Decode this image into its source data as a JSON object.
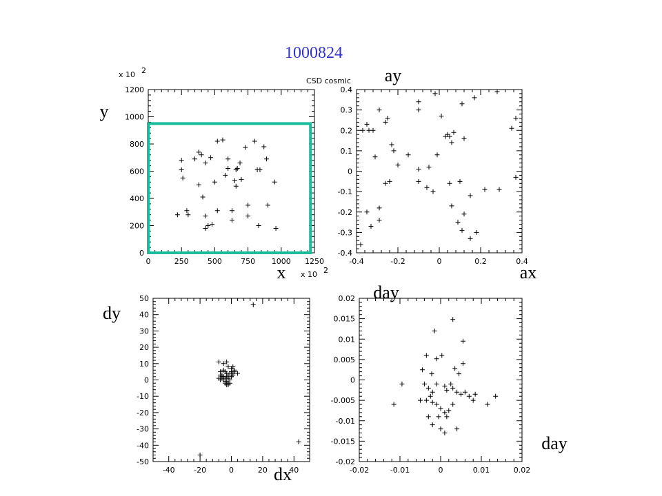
{
  "title": "1000824",
  "selection_color": "#1abc9c",
  "chart_data": [
    {
      "type": "scatter",
      "id": "xy",
      "xlabel": "x",
      "ylabel": "y",
      "xlim": [
        0,
        1250
      ],
      "ylim": [
        0,
        1200
      ],
      "x_exponent": "x 10",
      "y_exponent": "x 10",
      "exp_sup": "2",
      "xticks": [
        0,
        250,
        500,
        750,
        1000,
        1250
      ],
      "yticks": [
        0,
        200,
        400,
        600,
        800,
        1000,
        1200
      ],
      "selection_box": {
        "x0": 0,
        "x1": 1220,
        "y0": 0,
        "y1": 950
      },
      "points": [
        [
          520,
          820
        ],
        [
          560,
          830
        ],
        [
          800,
          820
        ],
        [
          730,
          775
        ],
        [
          870,
          780
        ],
        [
          380,
          740
        ],
        [
          400,
          720
        ],
        [
          350,
          690
        ],
        [
          470,
          700
        ],
        [
          250,
          680
        ],
        [
          600,
          690
        ],
        [
          250,
          610
        ],
        [
          430,
          660
        ],
        [
          690,
          660
        ],
        [
          600,
          620
        ],
        [
          670,
          620
        ],
        [
          660,
          610
        ],
        [
          820,
          610
        ],
        [
          840,
          610
        ],
        [
          260,
          550
        ],
        [
          580,
          570
        ],
        [
          700,
          540
        ],
        [
          890,
          690
        ],
        [
          500,
          520
        ],
        [
          380,
          500
        ],
        [
          650,
          530
        ],
        [
          660,
          490
        ],
        [
          950,
          520
        ],
        [
          410,
          410
        ],
        [
          520,
          310
        ],
        [
          630,
          310
        ],
        [
          750,
          350
        ],
        [
          900,
          350
        ],
        [
          290,
          310
        ],
        [
          220,
          280
        ],
        [
          300,
          280
        ],
        [
          430,
          270
        ],
        [
          630,
          240
        ],
        [
          750,
          270
        ],
        [
          450,
          200
        ],
        [
          480,
          210
        ],
        [
          830,
          200
        ],
        [
          960,
          180
        ],
        [
          430,
          180
        ]
      ]
    },
    {
      "type": "scatter",
      "id": "axay",
      "corner_label": "CSD cosmic",
      "xlabel": "ax",
      "ylabel": "ay",
      "xlim": [
        -0.4,
        0.4
      ],
      "ylim": [
        -0.4,
        0.4
      ],
      "xticks": [
        "-0.4",
        "-0.2",
        "0",
        "0.2",
        "0.4"
      ],
      "yticks": [
        "-0.4",
        "-0.3",
        "-0.2",
        "-0.1",
        "0",
        "0.1",
        "0.2",
        "0.3",
        "0.4"
      ],
      "points": [
        [
          -0.37,
          0.2
        ],
        [
          -0.35,
          0.23
        ],
        [
          -0.34,
          0.2
        ],
        [
          -0.32,
          0.2
        ],
        [
          -0.29,
          0.3
        ],
        [
          -0.26,
          0.24
        ],
        [
          -0.25,
          0.26
        ],
        [
          -0.23,
          0.13
        ],
        [
          -0.22,
          0.1
        ],
        [
          -0.1,
          0.3
        ],
        [
          -0.1,
          0.34
        ],
        [
          -0.02,
          0.38
        ],
        [
          0.01,
          0.27
        ],
        [
          0.03,
          0.17
        ],
        [
          0.04,
          0.18
        ],
        [
          0.05,
          0.17
        ],
        [
          0.06,
          0.14
        ],
        [
          0.07,
          0.19
        ],
        [
          0.11,
          0.33
        ],
        [
          0.12,
          0.16
        ],
        [
          0.17,
          0.36
        ],
        [
          0.28,
          0.39
        ],
        [
          0.35,
          0.21
        ],
        [
          0.37,
          0.26
        ],
        [
          -0.31,
          0.07
        ],
        [
          -0.2,
          0.03
        ],
        [
          -0.15,
          0.08
        ],
        [
          -0.1,
          0.01
        ],
        [
          -0.05,
          0.02
        ],
        [
          -0.01,
          0.08
        ],
        [
          0.05,
          -0.06
        ],
        [
          0.1,
          -0.05
        ],
        [
          0.15,
          -0.12
        ],
        [
          0.22,
          -0.09
        ],
        [
          0.29,
          -0.09
        ],
        [
          0.37,
          -0.03
        ],
        [
          -0.35,
          -0.2
        ],
        [
          -0.33,
          -0.27
        ],
        [
          -0.29,
          -0.18
        ],
        [
          -0.29,
          -0.24
        ],
        [
          -0.26,
          -0.06
        ],
        [
          -0.24,
          -0.05
        ],
        [
          -0.1,
          -0.05
        ],
        [
          -0.06,
          -0.08
        ],
        [
          -0.03,
          -0.1
        ],
        [
          0.06,
          -0.17
        ],
        [
          0.09,
          -0.25
        ],
        [
          0.11,
          -0.29
        ],
        [
          0.15,
          -0.33
        ],
        [
          0.18,
          -0.3
        ],
        [
          -0.38,
          -0.36
        ],
        [
          0.12,
          -0.21
        ]
      ]
    },
    {
      "type": "scatter",
      "id": "dxdy",
      "xlabel": "dx",
      "ylabel": "dy",
      "xlim": [
        -50,
        50
      ],
      "ylim": [
        -50,
        50
      ],
      "xticks": [
        -40,
        -20,
        0,
        20,
        40
      ],
      "yticks": [
        -50,
        -40,
        -30,
        -20,
        -10,
        0,
        10,
        20,
        30,
        40,
        50
      ],
      "points": [
        [
          14,
          46
        ],
        [
          -8,
          11
        ],
        [
          -5,
          10
        ],
        [
          -3,
          11
        ],
        [
          -2,
          8
        ],
        [
          0,
          7
        ],
        [
          1,
          8
        ],
        [
          2,
          6
        ],
        [
          -7,
          5
        ],
        [
          -5,
          6
        ],
        [
          -4,
          5
        ],
        [
          -3,
          4
        ],
        [
          -2,
          3
        ],
        [
          -1,
          4
        ],
        [
          0,
          5
        ],
        [
          1,
          4
        ],
        [
          2,
          5
        ],
        [
          -6,
          3
        ],
        [
          -5,
          2
        ],
        [
          -4,
          1
        ],
        [
          -3,
          2
        ],
        [
          -2,
          1
        ],
        [
          -1,
          0
        ],
        [
          0,
          2
        ],
        [
          1,
          3
        ],
        [
          4,
          4
        ],
        [
          -8,
          1
        ],
        [
          -7,
          0
        ],
        [
          -6,
          2
        ],
        [
          -5,
          0
        ],
        [
          -4,
          -1
        ],
        [
          -3,
          -1
        ],
        [
          -2,
          -2
        ],
        [
          -3,
          -3
        ],
        [
          -4,
          -2
        ],
        [
          -1,
          -2
        ],
        [
          -2,
          -3
        ],
        [
          -6,
          1
        ],
        [
          -7,
          3
        ],
        [
          43,
          -38
        ],
        [
          -20,
          -46
        ]
      ]
    },
    {
      "type": "scatter",
      "id": "dxday",
      "xlabel": "day",
      "ylabel": "day",
      "xlim": [
        -0.02,
        0.02
      ],
      "ylim": [
        -0.02,
        0.02
      ],
      "xticks": [
        "-0.02",
        "-0.01",
        "0",
        "0.01",
        "0.02"
      ],
      "yticks": [
        "-0.02",
        "-0.015",
        "-0.01",
        "-0.005",
        "0",
        "0.005",
        "0.01",
        "0.015",
        "0.02"
      ],
      "points": [
        [
          0.003,
          0.0148
        ],
        [
          -0.0015,
          0.012
        ],
        [
          0.0055,
          0.0095
        ],
        [
          -0.0035,
          0.006
        ],
        [
          0.0003,
          0.006
        ],
        [
          -0.001,
          0.0052
        ],
        [
          0.0055,
          0.004
        ],
        [
          -0.0045,
          0.0025
        ],
        [
          -0.0022,
          0.0015
        ],
        [
          0.0035,
          0.0028
        ],
        [
          0.0045,
          0.0015
        ],
        [
          -0.0095,
          -0.001
        ],
        [
          -0.004,
          -0.001
        ],
        [
          -0.003,
          -0.002
        ],
        [
          -0.002,
          -0.003
        ],
        [
          -0.0025,
          -0.004
        ],
        [
          -0.001,
          -0.001
        ],
        [
          0.001,
          -0.0015
        ],
        [
          0.0015,
          -0.0025
        ],
        [
          0.0025,
          -0.001
        ],
        [
          0.003,
          -0.002
        ],
        [
          0.004,
          -0.003
        ],
        [
          0.005,
          -0.0035
        ],
        [
          0.006,
          -0.003
        ],
        [
          0.007,
          -0.004
        ],
        [
          0.008,
          -0.005
        ],
        [
          0.0085,
          -0.0035
        ],
        [
          -0.005,
          -0.005
        ],
        [
          -0.0035,
          -0.005
        ],
        [
          -0.002,
          -0.0055
        ],
        [
          -0.001,
          -0.006
        ],
        [
          0.0,
          -0.007
        ],
        [
          0.001,
          -0.008
        ],
        [
          0.002,
          -0.0075
        ],
        [
          0.003,
          -0.006
        ],
        [
          0.0015,
          -0.009
        ],
        [
          -0.0005,
          -0.009
        ],
        [
          -0.003,
          -0.009
        ],
        [
          -0.002,
          -0.011
        ],
        [
          0.0,
          -0.012
        ],
        [
          0.001,
          -0.013
        ],
        [
          0.004,
          -0.012
        ],
        [
          0.0115,
          -0.006
        ],
        [
          0.0135,
          -0.004
        ],
        [
          -0.0115,
          -0.006
        ]
      ]
    }
  ]
}
